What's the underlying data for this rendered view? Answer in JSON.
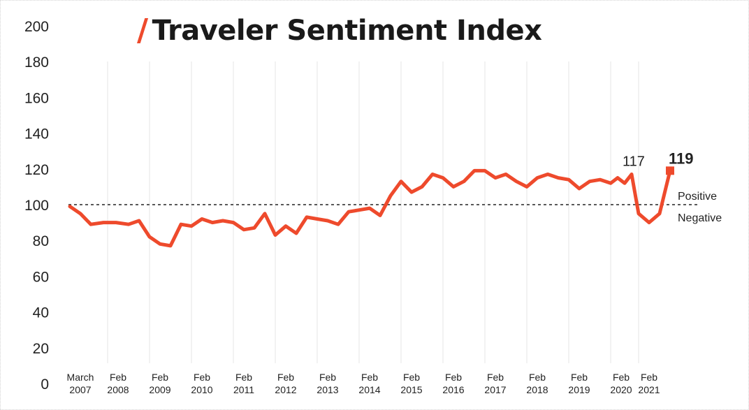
{
  "page": {
    "title": "Traveler Sentiment Index",
    "title_mark": "/"
  },
  "colors": {
    "series": "#ee4a2c",
    "text": "#1a1a1a",
    "grid": "#e6e6e6",
    "baseline": "#222222"
  },
  "chart_data": {
    "type": "line",
    "title": "Traveler Sentiment Index",
    "ylim": [
      0,
      200
    ],
    "yticks": [
      0,
      20,
      40,
      60,
      80,
      100,
      120,
      140,
      160,
      180,
      200
    ],
    "x_range": [
      2007.2,
      2021.1
    ],
    "xticks": [
      {
        "x": 2007.2,
        "line1": "March",
        "line2": "2007"
      },
      {
        "x": 2008.1,
        "line1": "Feb",
        "line2": "2008"
      },
      {
        "x": 2009.1,
        "line1": "Feb",
        "line2": "2009"
      },
      {
        "x": 2010.1,
        "line1": "Feb",
        "line2": "2010"
      },
      {
        "x": 2011.1,
        "line1": "Feb",
        "line2": "2011"
      },
      {
        "x": 2012.1,
        "line1": "Feb",
        "line2": "2012"
      },
      {
        "x": 2013.1,
        "line1": "Feb",
        "line2": "2013"
      },
      {
        "x": 2014.1,
        "line1": "Feb",
        "line2": "2014"
      },
      {
        "x": 2015.1,
        "line1": "Feb",
        "line2": "2015"
      },
      {
        "x": 2016.1,
        "line1": "Feb",
        "line2": "2016"
      },
      {
        "x": 2017.1,
        "line1": "Feb",
        "line2": "2017"
      },
      {
        "x": 2018.1,
        "line1": "Feb",
        "line2": "2018"
      },
      {
        "x": 2019.1,
        "line1": "Feb",
        "line2": "2019"
      },
      {
        "x": 2020.1,
        "line1": "Feb",
        "line2": "2020"
      },
      {
        "x": 2021.1,
        "line1": "Feb",
        "line2": "2021"
      }
    ],
    "reference_line": {
      "y": 100,
      "above_label": "Positive",
      "below_label": "Negative"
    },
    "grid": {
      "vertical": true,
      "horizontal": false
    },
    "series": [
      {
        "color": "#ee4a2c",
        "points": [
          [
            2007.2,
            99
          ],
          [
            2007.45,
            95
          ],
          [
            2007.7,
            89
          ],
          [
            2008.0,
            90
          ],
          [
            2008.3,
            90
          ],
          [
            2008.6,
            89
          ],
          [
            2008.85,
            91
          ],
          [
            2009.1,
            82
          ],
          [
            2009.35,
            78
          ],
          [
            2009.6,
            77
          ],
          [
            2009.85,
            89
          ],
          [
            2010.1,
            88
          ],
          [
            2010.35,
            92
          ],
          [
            2010.6,
            90
          ],
          [
            2010.85,
            91
          ],
          [
            2011.1,
            90
          ],
          [
            2011.35,
            86
          ],
          [
            2011.6,
            87
          ],
          [
            2011.85,
            95
          ],
          [
            2012.1,
            83
          ],
          [
            2012.35,
            88
          ],
          [
            2012.6,
            84
          ],
          [
            2012.85,
            93
          ],
          [
            2013.1,
            92
          ],
          [
            2013.35,
            91
          ],
          [
            2013.6,
            89
          ],
          [
            2013.85,
            96
          ],
          [
            2014.1,
            97
          ],
          [
            2014.35,
            98
          ],
          [
            2014.6,
            94
          ],
          [
            2014.85,
            105
          ],
          [
            2015.1,
            113
          ],
          [
            2015.35,
            107
          ],
          [
            2015.6,
            110
          ],
          [
            2015.85,
            117
          ],
          [
            2016.1,
            115
          ],
          [
            2016.35,
            110
          ],
          [
            2016.6,
            113
          ],
          [
            2016.85,
            119
          ],
          [
            2017.1,
            119
          ],
          [
            2017.35,
            115
          ],
          [
            2017.6,
            117
          ],
          [
            2017.85,
            113
          ],
          [
            2018.1,
            110
          ],
          [
            2018.35,
            115
          ],
          [
            2018.6,
            117
          ],
          [
            2018.85,
            115
          ],
          [
            2019.1,
            114
          ],
          [
            2019.35,
            109
          ],
          [
            2019.6,
            113
          ],
          [
            2019.85,
            114
          ],
          [
            2020.1,
            112
          ],
          [
            2020.35,
            115
          ],
          [
            2020.6,
            112
          ],
          [
            2020.85,
            117
          ],
          [
            2021.1,
            95
          ],
          [
            2021.35,
            90
          ],
          [
            2021.6,
            95
          ],
          [
            2021.85,
            119
          ]
        ]
      }
    ],
    "annotations": [
      {
        "label": "117",
        "x": 2020.85,
        "y": 117,
        "bold": false
      },
      {
        "label": "119",
        "x": 2021.85,
        "y": 119,
        "bold": true
      }
    ]
  }
}
